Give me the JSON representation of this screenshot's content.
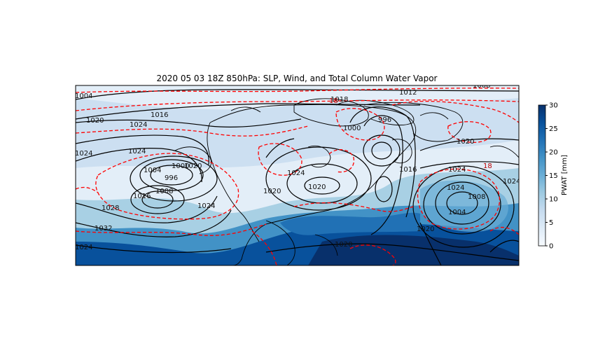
{
  "chart_data": {
    "type": "map-contour",
    "title": "2020 05 03 18Z 850hPa: SLP, Wind, and Total Column Water Vapor",
    "fill_variable": "Total Column Water Vapor",
    "colorbar": {
      "label": "PWAT [mm]",
      "range": [
        0,
        30
      ],
      "ticks": [
        "0",
        "5",
        "10",
        "15",
        "20",
        "25",
        "30"
      ],
      "colormap_stops": [
        "#f7fbff",
        "#deebf7",
        "#c6dbef",
        "#9ecae1",
        "#6baed6",
        "#4292c6",
        "#2171b5",
        "#08519c",
        "#08306b"
      ]
    },
    "slp_contour_labels_hPa": [
      "1004",
      "1012",
      "1008",
      "1016",
      "1020",
      "1024",
      "1024",
      "1024",
      "1028",
      "1032",
      "1024",
      "996",
      "1000",
      "1004",
      "1008",
      "1016",
      "1020",
      "1024",
      "1024",
      "1020",
      "1020",
      "1024",
      "1016",
      "1008",
      "1004",
      "1020",
      "1020",
      "1024",
      "1018",
      "1000",
      "996",
      "1024",
      "1020"
    ],
    "contour_colors": {
      "slp": "#000000",
      "wind": "#ff0000",
      "coastline": "#000000"
    },
    "wind_contour_labels": [
      "18",
      "18"
    ]
  }
}
